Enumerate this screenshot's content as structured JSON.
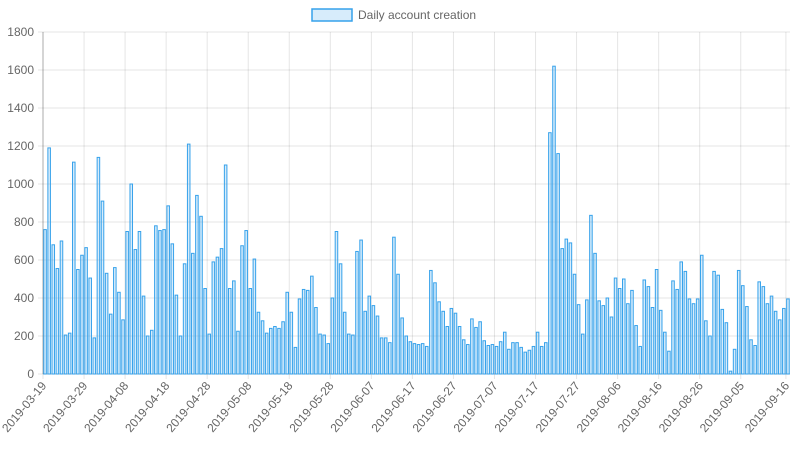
{
  "chart_data": {
    "type": "bar",
    "series": [
      {
        "name": "Daily account creation",
        "color": "#36a2eb",
        "fill": "rgba(54,162,235,0.2)",
        "start_date": "2019-03-19",
        "values": [
          760,
          1190,
          680,
          555,
          700,
          205,
          215,
          1115,
          550,
          625,
          665,
          505,
          190,
          1140,
          910,
          530,
          315,
          560,
          430,
          285,
          750,
          1000,
          655,
          750,
          410,
          200,
          230,
          780,
          755,
          760,
          885,
          685,
          415,
          200,
          580,
          1210,
          635,
          940,
          830,
          450,
          210,
          590,
          615,
          660,
          1100,
          450,
          490,
          225,
          675,
          755,
          450,
          605,
          325,
          280,
          215,
          240,
          250,
          240,
          275,
          430,
          325,
          140,
          395,
          445,
          440,
          515,
          350,
          210,
          205,
          160,
          400,
          750,
          580,
          325,
          210,
          205,
          645,
          705,
          330,
          410,
          360,
          305,
          190,
          190,
          165,
          720,
          525,
          295,
          200,
          170,
          160,
          155,
          160,
          145,
          545,
          480,
          380,
          330,
          250,
          345,
          320,
          250,
          180,
          155,
          290,
          245,
          275,
          175,
          150,
          155,
          145,
          170,
          220,
          130,
          165,
          165,
          140,
          115,
          125,
          145,
          220,
          145,
          165,
          1270,
          1620,
          1160,
          660,
          710,
          690,
          525,
          365,
          210,
          390,
          835,
          635,
          385,
          360,
          400,
          300,
          505,
          450,
          500,
          370,
          440,
          255,
          145,
          495,
          460,
          350,
          550,
          335,
          220,
          120,
          490,
          445,
          590,
          540,
          395,
          370,
          395,
          625,
          280,
          200,
          540,
          520,
          340,
          270,
          15,
          130,
          545,
          465,
          355,
          180,
          150,
          485,
          460,
          370,
          410,
          330,
          285,
          345,
          395
        ]
      }
    ],
    "x_ticks": [
      "2019-03-19",
      "2019-03-29",
      "2019-04-08",
      "2019-04-18",
      "2019-04-28",
      "2019-05-08",
      "2019-05-18",
      "2019-05-28",
      "2019-06-07",
      "2019-06-17",
      "2019-06-27",
      "2019-07-07",
      "2019-07-17",
      "2019-07-27",
      "2019-08-06",
      "2019-08-16",
      "2019-08-26",
      "2019-09-05",
      "2019-09-16"
    ],
    "y_ticks": [
      0,
      200,
      400,
      600,
      800,
      1000,
      1200,
      1400,
      1600,
      1800
    ],
    "ylim": [
      0,
      1800
    ],
    "grid": true,
    "legend_position": "top-center",
    "title": "",
    "xlabel": "",
    "ylabel": ""
  }
}
